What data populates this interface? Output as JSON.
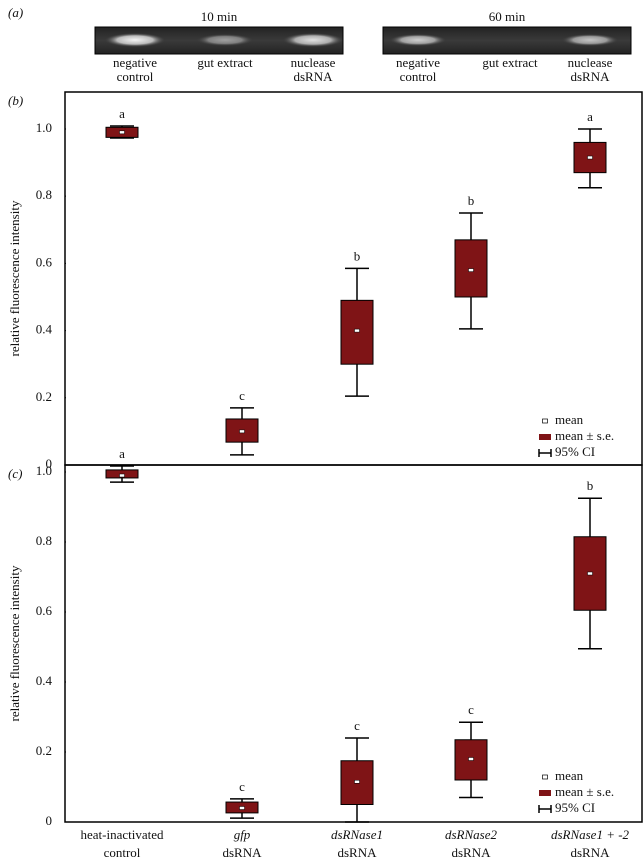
{
  "figure": {
    "panel_a": "(a)",
    "gels": [
      {
        "title": "10 min",
        "lanes": [
          [
            "negative",
            "control"
          ],
          [
            "gut extract"
          ],
          [
            "nuclease",
            "dsRNA"
          ]
        ]
      },
      {
        "title": "60 min",
        "lanes": [
          [
            "negative",
            "control"
          ],
          [
            "gut extract"
          ],
          [
            "nuclease",
            "dsRNA"
          ]
        ]
      }
    ]
  },
  "chart_data": [
    {
      "type": "box",
      "panel_label": "(b)",
      "y_label": "relative fluorescence intensity",
      "color": "#7f1416",
      "mean": [
        0.99,
        0.1,
        0.4,
        0.58,
        0.915
      ],
      "se_lower": [
        0.975,
        0.068,
        0.3,
        0.5,
        0.87
      ],
      "se_upper": [
        1.005,
        0.137,
        0.49,
        0.67,
        0.96
      ],
      "ci_lower": [
        0.973,
        0.03,
        0.205,
        0.405,
        0.825
      ],
      "ci_upper": [
        1.009,
        0.17,
        0.585,
        0.75,
        1.0
      ],
      "letters": [
        "a",
        "c",
        "b",
        "b",
        "a"
      ],
      "ylim": [
        0,
        1.11
      ],
      "yticks": [
        0,
        0.2,
        0.4,
        0.6,
        0.8,
        {
          "value": 1,
          "label": "1.0"
        }
      ],
      "legend": [
        "mean",
        "mean ± s.e.",
        "95% CI"
      ]
    },
    {
      "type": "box",
      "panel_label": "(c)",
      "y_label": "relative fluorescence intensity",
      "color": "#7f1416",
      "categories": [
        "heat-inactivated",
        "gfp",
        "dsRNase1",
        "dsRNase2",
        "dsRNase1 + -2"
      ],
      "category_line2": [
        "control",
        "dsRNA",
        "dsRNA",
        "dsRNA",
        "dsRNA"
      ],
      "category_italic": [
        false,
        true,
        true,
        true,
        true
      ],
      "mean": [
        0.99,
        0.04,
        0.115,
        0.18,
        0.71
      ],
      "se_lower": [
        0.983,
        0.026,
        0.05,
        0.12,
        0.605
      ],
      "se_upper": [
        1.006,
        0.057,
        0.175,
        0.235,
        0.815
      ],
      "ci_lower": [
        0.971,
        0.011,
        0,
        0.07,
        0.495
      ],
      "ci_upper": [
        1.017,
        0.066,
        0.24,
        0.285,
        0.925
      ],
      "letters": [
        "a",
        "c",
        "c",
        "c",
        "b"
      ],
      "ylim": [
        0,
        1.02
      ],
      "yticks": [
        0,
        0.2,
        0.4,
        0.6,
        0.8,
        {
          "value": 1,
          "label": "1.0"
        }
      ],
      "legend": [
        "mean",
        "mean ± s.e.",
        "95% CI"
      ]
    }
  ]
}
